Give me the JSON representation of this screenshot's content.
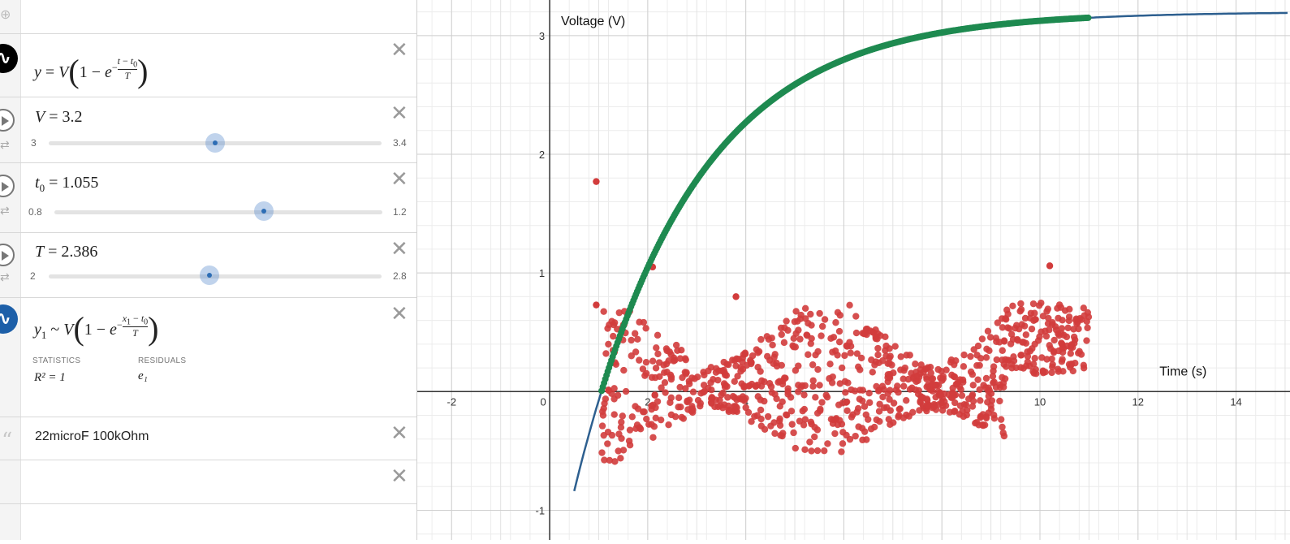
{
  "expressions": [
    {
      "id": "e1",
      "type": "function",
      "color": "#000000",
      "latex_html": "y = V(1 − e^{−(t−t₀)/T})"
    },
    {
      "id": "e2",
      "type": "slider",
      "name": "V",
      "value": "3.2",
      "min": "3",
      "max": "3.4",
      "fraction": 0.5
    },
    {
      "id": "e3",
      "type": "slider",
      "name": "t0",
      "value": "1.055",
      "min": "0.8",
      "max": "1.2",
      "fraction": 0.6375
    },
    {
      "id": "e4",
      "type": "slider",
      "name": "T",
      "value": "2.386",
      "min": "2",
      "max": "2.8",
      "fraction": 0.4825
    },
    {
      "id": "e5",
      "type": "regression",
      "color": "#1d5fa8",
      "statistics_label": "STATISTICS",
      "residuals_label": "RESIDUALS",
      "r2": "R² = 1",
      "residual_var": "e₁"
    },
    {
      "id": "e6",
      "type": "note",
      "text": "22microF 100kOhm"
    },
    {
      "id": "e7",
      "type": "empty"
    }
  ],
  "icons": {
    "zoom": "zoom-in-icon",
    "close": "close-icon",
    "play": "play-icon",
    "loop": "loop-icon",
    "note": "quote-icon"
  },
  "chart_data": {
    "type": "scatter",
    "xlabel": "Time (s)",
    "ylabel": "Voltage (V)",
    "xlim": [
      -2.7,
      15.1
    ],
    "ylim": [
      -1.25,
      3.3
    ],
    "x_ticks": [
      "-2",
      "0",
      "2",
      "4",
      "6",
      "8",
      "10",
      "12",
      "14"
    ],
    "y_ticks": [
      "-1",
      "1",
      "2",
      "3"
    ],
    "grid": true,
    "colors": {
      "curve": "#2d5f8f",
      "data": "#1e8a50",
      "residuals": "#d23c3c"
    },
    "curve": {
      "V": 3.2,
      "t0": 1.055,
      "T": 2.386
    },
    "data_range": [
      1.06,
      11.0
    ],
    "outliers": [
      [
        0.95,
        1.77
      ],
      [
        0.95,
        0.73
      ],
      [
        2.1,
        1.05
      ],
      [
        10.2,
        1.06
      ],
      [
        3.8,
        0.8
      ]
    ]
  }
}
